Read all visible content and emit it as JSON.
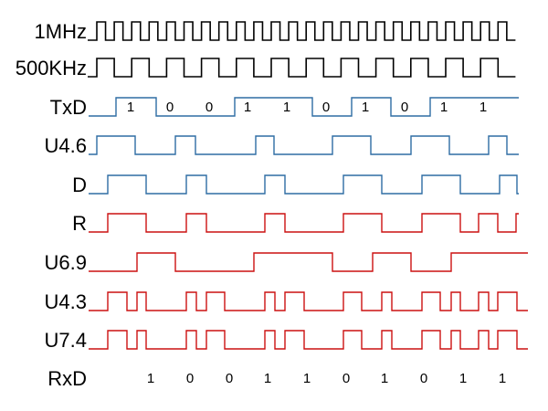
{
  "colors": {
    "black": "#000000",
    "blue": "#2e6da4",
    "red": "#cc1111"
  },
  "signals": [
    {
      "id": "clk1m",
      "label": "1MHz",
      "color": "black",
      "kind": "clock",
      "periods": 24
    },
    {
      "id": "clk500k",
      "label": "500KHz",
      "color": "black",
      "kind": "clock",
      "periods": 12
    },
    {
      "id": "txd",
      "label": "TxD",
      "color": "blue",
      "kind": "bits",
      "bits": [
        "1",
        "0",
        "0",
        "1",
        "1",
        "0",
        "1",
        "0",
        "1",
        "1"
      ]
    },
    {
      "id": "u46",
      "label": "U4.6",
      "color": "blue",
      "kind": "wave"
    },
    {
      "id": "d",
      "label": "D",
      "color": "blue",
      "kind": "wave"
    },
    {
      "id": "r",
      "label": "R",
      "color": "red",
      "kind": "wave"
    },
    {
      "id": "u69",
      "label": "U6.9",
      "color": "red",
      "kind": "wave"
    },
    {
      "id": "u43",
      "label": "U4.3",
      "color": "red",
      "kind": "wave"
    },
    {
      "id": "u74",
      "label": "U7.4",
      "color": "red",
      "kind": "wave"
    },
    {
      "id": "rxd",
      "label": "RxD",
      "color": "black",
      "kind": "text",
      "bits": [
        "1",
        "0",
        "0",
        "1",
        "1",
        "0",
        "1",
        "0",
        "1",
        "1"
      ]
    }
  ]
}
